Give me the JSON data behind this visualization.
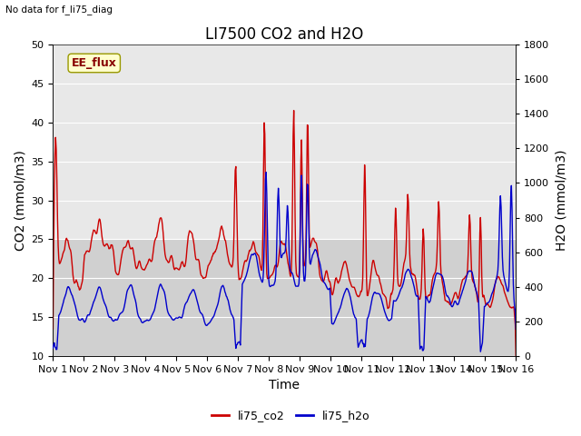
{
  "title": "LI7500 CO2 and H2O",
  "subtitle": "No data for f_li75_diag",
  "xlabel": "Time",
  "ylabel_left": "CO2 (mmol/m3)",
  "ylabel_right": "H2O (mmol/m3)",
  "ylim_left": [
    10,
    50
  ],
  "ylim_right": [
    0,
    1800
  ],
  "yticks_left": [
    10,
    15,
    20,
    25,
    30,
    35,
    40,
    45,
    50
  ],
  "yticks_right": [
    0,
    200,
    400,
    600,
    800,
    1000,
    1200,
    1400,
    1600,
    1800
  ],
  "xtick_labels": [
    "Nov 1",
    "Nov 2",
    "Nov 3",
    "Nov 4",
    "Nov 5",
    "Nov 6",
    "Nov 7",
    "Nov 8",
    "Nov 9",
    "Nov 10",
    "Nov 11",
    "Nov 12",
    "Nov 13",
    "Nov 14",
    "Nov 15",
    "Nov 16"
  ],
  "legend_labels": [
    "li75_co2",
    "li75_h2o"
  ],
  "legend_colors": [
    "#cc0000",
    "#0000cc"
  ],
  "co2_color": "#cc0000",
  "h2o_color": "#0000cc",
  "background_color": "#ffffff",
  "plot_bg_color": "#e0e0e0",
  "band_light": "#e8e8e8",
  "band_dark": "#d0d0d0",
  "annotation_box_color": "#ffffcc",
  "annotation_text": "EE_flux",
  "annotation_text_color": "#880000",
  "grid_color": "#ffffff",
  "title_fontsize": 12,
  "axis_label_fontsize": 10,
  "tick_fontsize": 8,
  "legend_fontsize": 9,
  "line_width": 1.0
}
